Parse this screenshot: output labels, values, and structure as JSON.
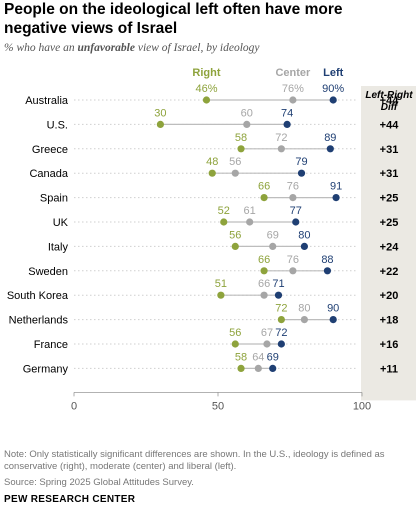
{
  "title": "People on the ideological left often have more negative views of Israel",
  "subtitle_parts": [
    "% who have an ",
    "unfavorable",
    " view of Israel, by ideology"
  ],
  "diff_header": [
    "Left-Right",
    "Diff"
  ],
  "footer": {
    "note": "Note: Only statistically significant differences are shown. In the U.S., ideology is defined as conservative (right), moderate (center) and liberal (left).",
    "source": "Source: Spring 2025 Global Attitudes Survey.",
    "org": "PEW RESEARCH CENTER"
  },
  "colors": {
    "right": "#8ea33c",
    "center": "#a6a6a6",
    "left": "#1f3f73",
    "diff_bg": "#ebe9e3",
    "grid": "#cfcfcf"
  },
  "chart_data": {
    "type": "dot",
    "xlim": [
      0,
      100
    ],
    "xticks": [
      0,
      50,
      100
    ],
    "series": [
      {
        "name": "Right",
        "key": "right"
      },
      {
        "name": "Center",
        "key": "center"
      },
      {
        "name": "Left",
        "key": "left"
      }
    ],
    "rows": [
      {
        "country": "Australia",
        "right": 46,
        "center": 76,
        "left": 90,
        "diff": "+44",
        "pct": true
      },
      {
        "country": "U.S.",
        "right": 30,
        "center": 60,
        "left": 74,
        "diff": "+44"
      },
      {
        "country": "Greece",
        "right": 58,
        "center": 72,
        "left": 89,
        "diff": "+31"
      },
      {
        "country": "Canada",
        "right": 48,
        "center": 56,
        "left": 79,
        "diff": "+31"
      },
      {
        "country": "Spain",
        "right": 66,
        "center": 76,
        "left": 91,
        "diff": "+25"
      },
      {
        "country": "UK",
        "right": 52,
        "center": 61,
        "left": 77,
        "diff": "+25"
      },
      {
        "country": "Italy",
        "right": 56,
        "center": 69,
        "left": 80,
        "diff": "+24"
      },
      {
        "country": "Sweden",
        "right": 66,
        "center": 76,
        "left": 88,
        "diff": "+22"
      },
      {
        "country": "South Korea",
        "right": 51,
        "center": 66,
        "left": 71,
        "diff": "+20"
      },
      {
        "country": "Netherlands",
        "right": 72,
        "center": 80,
        "left": 90,
        "diff": "+18"
      },
      {
        "country": "France",
        "right": 56,
        "center": 67,
        "left": 72,
        "diff": "+16"
      },
      {
        "country": "Germany",
        "right": 58,
        "center": 64,
        "left": 69,
        "diff": "+11"
      }
    ]
  }
}
